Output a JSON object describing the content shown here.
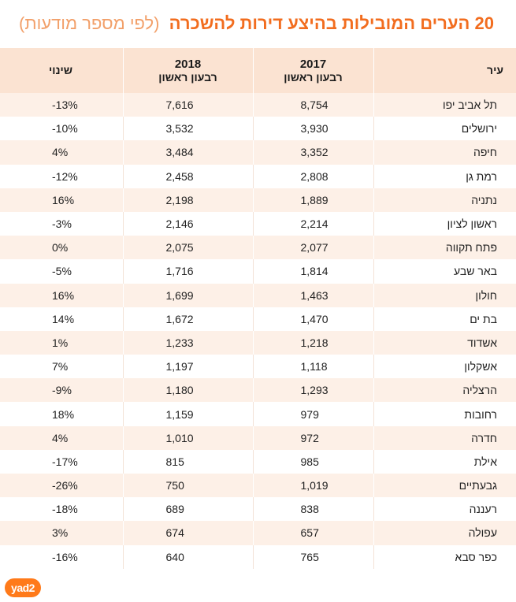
{
  "title": {
    "main": "20 הערים המובילות בהיצע דירות להשכרה",
    "sub": "(לפי מספר מודעות)"
  },
  "brand": {
    "logo_text": "yad2",
    "accent": "#f26d1f",
    "header_bg": "#fbe3d2",
    "row_alt_bg": "#fdf0e7"
  },
  "chart_data": {
    "type": "table",
    "title": "20 הערים המובילות בהיצע דירות להשכרה (לפי מספר מודעות)",
    "columns": [
      {
        "key": "city",
        "label": "עיר",
        "sublabel": ""
      },
      {
        "key": "y2017",
        "label": "2017",
        "sublabel": "רבעון ראשון"
      },
      {
        "key": "y2018",
        "label": "2018",
        "sublabel": "רבעון ראשון"
      },
      {
        "key": "change",
        "label": "שינוי",
        "sublabel": ""
      }
    ],
    "rows": [
      {
        "city": "תל אביב יפו",
        "y2017": "8,754",
        "y2018": "7,616",
        "change": "-13%"
      },
      {
        "city": "ירושלים",
        "y2017": "3,930",
        "y2018": "3,532",
        "change": "-10%"
      },
      {
        "city": "חיפה",
        "y2017": "3,352",
        "y2018": "3,484",
        "change": "4%"
      },
      {
        "city": "רמת גן",
        "y2017": "2,808",
        "y2018": "2,458",
        "change": "-12%"
      },
      {
        "city": "נתניה",
        "y2017": "1,889",
        "y2018": "2,198",
        "change": "16%"
      },
      {
        "city": "ראשון לציון",
        "y2017": "2,214",
        "y2018": "2,146",
        "change": "-3%"
      },
      {
        "city": "פתח תקווה",
        "y2017": "2,077",
        "y2018": "2,075",
        "change": "0%"
      },
      {
        "city": "באר שבע",
        "y2017": "1,814",
        "y2018": "1,716",
        "change": "-5%"
      },
      {
        "city": "חולון",
        "y2017": "1,463",
        "y2018": "1,699",
        "change": "16%"
      },
      {
        "city": "בת ים",
        "y2017": "1,470",
        "y2018": "1,672",
        "change": "14%"
      },
      {
        "city": "אשדוד",
        "y2017": "1,218",
        "y2018": "1,233",
        "change": "1%"
      },
      {
        "city": "אשקלון",
        "y2017": "1,118",
        "y2018": "1,197",
        "change": "7%"
      },
      {
        "city": "הרצליה",
        "y2017": "1,293",
        "y2018": "1,180",
        "change": "-9%"
      },
      {
        "city": "רחובות",
        "y2017": "979",
        "y2018": "1,159",
        "change": "18%"
      },
      {
        "city": "חדרה",
        "y2017": "972",
        "y2018": "1,010",
        "change": "4%"
      },
      {
        "city": "אילת",
        "y2017": "985",
        "y2018": "815",
        "change": "-17%"
      },
      {
        "city": "גבעתיים",
        "y2017": "1,019",
        "y2018": "750",
        "change": "-26%"
      },
      {
        "city": "רעננה",
        "y2017": "838",
        "y2018": "689",
        "change": "-18%"
      },
      {
        "city": "עפולה",
        "y2017": "657",
        "y2018": "674",
        "change": "3%"
      },
      {
        "city": "כפר סבא",
        "y2017": "765",
        "y2018": "640",
        "change": "-16%"
      }
    ]
  }
}
